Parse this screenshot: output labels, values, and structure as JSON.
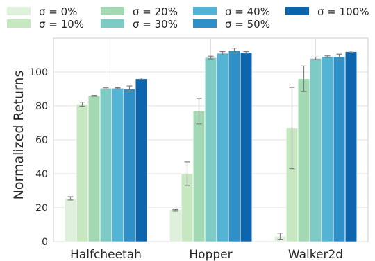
{
  "chart_data": {
    "type": "bar",
    "ylabel": "Normalized Returns",
    "xlabel": "",
    "ylim": [
      0,
      120
    ],
    "yticks": [
      0,
      20,
      40,
      60,
      80,
      100
    ],
    "grid": true,
    "legend_placement": "top",
    "categories": [
      "Halfcheetah",
      "Hopper",
      "Walker2d"
    ],
    "series": [
      {
        "name": "σ = 0%",
        "color": "#dff1dc",
        "values": [
          25.5,
          18.5,
          3.2
        ],
        "errors": [
          1.0,
          0.5,
          1.8
        ]
      },
      {
        "name": "σ = 10%",
        "color": "#c6e7c0",
        "values": [
          81.0,
          40.0,
          67.0
        ],
        "errors": [
          1.2,
          7.0,
          24.0
        ]
      },
      {
        "name": "σ = 20%",
        "color": "#a2d9b3",
        "values": [
          86.0,
          77.0,
          96.0
        ],
        "errors": [
          0.3,
          7.5,
          7.5
        ]
      },
      {
        "name": "σ = 30%",
        "color": "#7dcbc4",
        "values": [
          90.5,
          108.5,
          108.0
        ],
        "errors": [
          0.4,
          0.8,
          0.8
        ]
      },
      {
        "name": "σ = 40%",
        "color": "#54b4d6",
        "values": [
          90.5,
          111.0,
          109.0
        ],
        "errors": [
          0.3,
          1.0,
          0.5
        ]
      },
      {
        "name": "σ = 50%",
        "color": "#2f8fc7",
        "values": [
          90.0,
          112.5,
          109.0
        ],
        "errors": [
          1.8,
          1.5,
          1.5
        ]
      },
      {
        "name": "σ = 100%",
        "color": "#0c65ad",
        "values": [
          96.0,
          111.5,
          112.0
        ],
        "errors": [
          0.5,
          0.5,
          0.4
        ]
      }
    ]
  }
}
